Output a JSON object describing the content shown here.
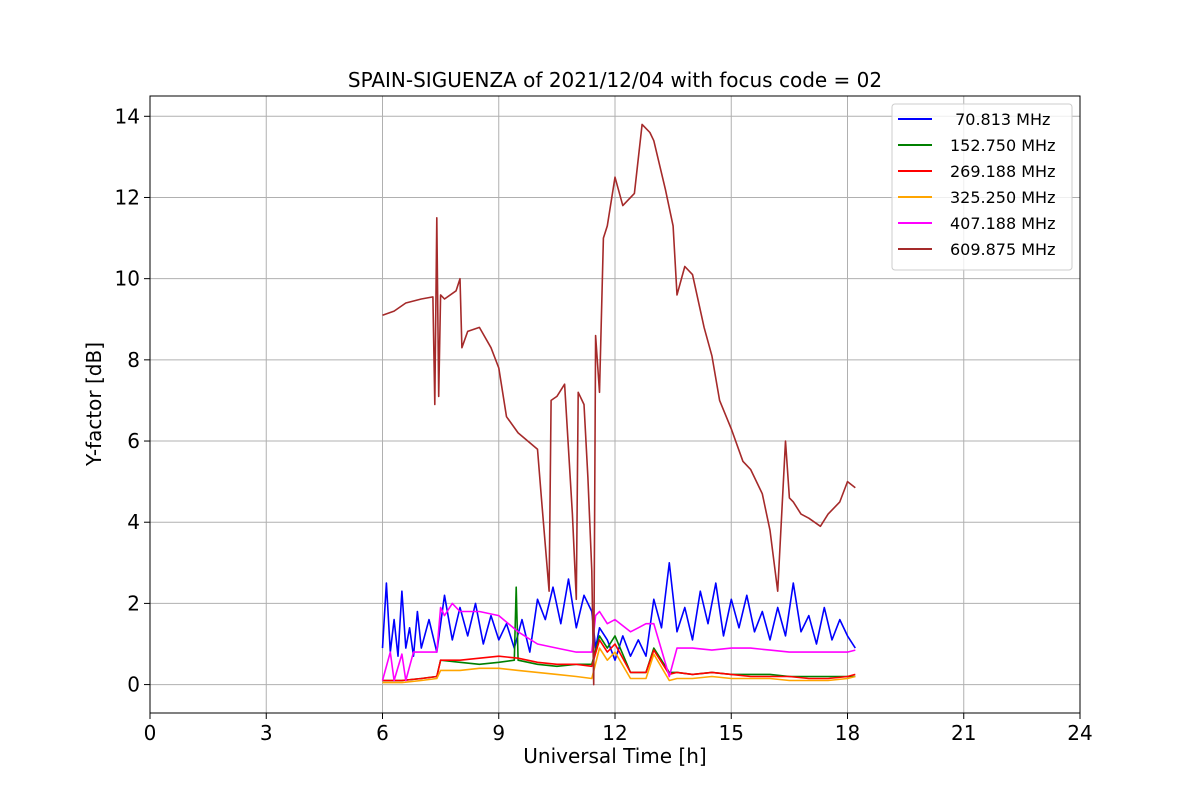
{
  "chart_data": {
    "type": "line",
    "title": "SPAIN-SIGUENZA of 2021/12/04 with focus code = 02",
    "xlabel": "Universal Time [h]",
    "ylabel": "Y-factor [dB]",
    "xlim": [
      0,
      24
    ],
    "ylim": [
      -0.7,
      14.5
    ],
    "xticks": [
      0,
      3,
      6,
      9,
      12,
      15,
      18,
      21,
      24
    ],
    "yticks": [
      0,
      2,
      4,
      6,
      8,
      10,
      12,
      14
    ],
    "grid": true,
    "legend_position": "top-right",
    "series": [
      {
        "name": " 70.813 MHz",
        "color": "#0000ff",
        "x": [
          6.0,
          6.1,
          6.2,
          6.3,
          6.4,
          6.5,
          6.6,
          6.7,
          6.8,
          6.9,
          7.0,
          7.2,
          7.4,
          7.6,
          7.8,
          8.0,
          8.2,
          8.4,
          8.6,
          8.8,
          9.0,
          9.2,
          9.4,
          9.6,
          9.8,
          10.0,
          10.2,
          10.4,
          10.6,
          10.8,
          11.0,
          11.2,
          11.4,
          11.5,
          11.6,
          11.8,
          12.0,
          12.2,
          12.4,
          12.6,
          12.8,
          13.0,
          13.2,
          13.4,
          13.6,
          13.8,
          14.0,
          14.2,
          14.4,
          14.6,
          14.8,
          15.0,
          15.2,
          15.4,
          15.6,
          15.8,
          16.0,
          16.2,
          16.4,
          16.6,
          16.8,
          17.0,
          17.2,
          17.4,
          17.6,
          17.8,
          18.0,
          18.2
        ],
        "y": [
          0.9,
          2.5,
          0.8,
          1.6,
          0.7,
          2.3,
          0.9,
          1.4,
          0.7,
          1.8,
          0.9,
          1.6,
          0.8,
          2.2,
          1.1,
          1.9,
          1.2,
          2.0,
          1.0,
          1.7,
          1.1,
          1.5,
          0.9,
          1.6,
          0.8,
          2.1,
          1.6,
          2.4,
          1.5,
          2.6,
          1.4,
          2.2,
          1.8,
          0.9,
          1.4,
          1.1,
          0.6,
          1.2,
          0.7,
          1.1,
          0.7,
          2.1,
          1.4,
          3.0,
          1.3,
          1.9,
          1.1,
          2.3,
          1.5,
          2.5,
          1.2,
          2.1,
          1.4,
          2.2,
          1.3,
          1.8,
          1.1,
          1.9,
          1.2,
          2.5,
          1.3,
          1.7,
          1.0,
          1.9,
          1.1,
          1.6,
          1.2,
          0.9
        ]
      },
      {
        "name": "152.750 MHz",
        "color": "#008000",
        "x": [
          6.0,
          6.5,
          7.0,
          7.4,
          7.5,
          8.0,
          8.5,
          9.0,
          9.4,
          9.45,
          9.5,
          10.0,
          10.5,
          11.0,
          11.4,
          11.6,
          11.8,
          12.0,
          12.4,
          12.8,
          13.0,
          13.4,
          13.6,
          14.0,
          14.5,
          15.0,
          15.5,
          16.0,
          16.5,
          17.0,
          17.5,
          18.0,
          18.2
        ],
        "y": [
          0.1,
          0.1,
          0.15,
          0.2,
          0.6,
          0.55,
          0.5,
          0.55,
          0.6,
          2.4,
          0.6,
          0.5,
          0.45,
          0.5,
          0.5,
          1.2,
          0.9,
          1.2,
          0.3,
          0.3,
          0.9,
          0.3,
          0.3,
          0.25,
          0.3,
          0.25,
          0.25,
          0.25,
          0.2,
          0.2,
          0.2,
          0.2,
          0.2
        ]
      },
      {
        "name": "269.188 MHz",
        "color": "#ff0000",
        "x": [
          6.0,
          6.5,
          7.0,
          7.4,
          7.5,
          8.0,
          8.5,
          9.0,
          9.5,
          10.0,
          10.5,
          11.0,
          11.4,
          11.6,
          11.8,
          12.0,
          12.4,
          12.8,
          13.0,
          13.4,
          13.6,
          14.0,
          14.5,
          15.0,
          15.5,
          16.0,
          16.5,
          17.0,
          17.5,
          18.0,
          18.2
        ],
        "y": [
          0.1,
          0.1,
          0.15,
          0.2,
          0.6,
          0.6,
          0.65,
          0.7,
          0.65,
          0.55,
          0.5,
          0.5,
          0.45,
          1.1,
          0.8,
          1.0,
          0.3,
          0.3,
          0.85,
          0.25,
          0.3,
          0.25,
          0.3,
          0.25,
          0.2,
          0.2,
          0.2,
          0.15,
          0.15,
          0.2,
          0.25
        ]
      },
      {
        "name": "325.250 MHz",
        "color": "#ffa500",
        "x": [
          6.0,
          6.5,
          7.0,
          7.4,
          7.5,
          8.0,
          8.5,
          9.0,
          9.5,
          10.0,
          10.5,
          11.0,
          11.4,
          11.6,
          11.8,
          12.0,
          12.4,
          12.8,
          13.0,
          13.4,
          13.6,
          14.0,
          14.5,
          15.0,
          15.5,
          16.0,
          16.5,
          17.0,
          17.5,
          18.0,
          18.2
        ],
        "y": [
          0.05,
          0.05,
          0.1,
          0.15,
          0.35,
          0.35,
          0.4,
          0.4,
          0.35,
          0.3,
          0.25,
          0.2,
          0.15,
          0.9,
          0.6,
          0.8,
          0.15,
          0.15,
          0.75,
          0.1,
          0.15,
          0.15,
          0.2,
          0.15,
          0.15,
          0.15,
          0.1,
          0.1,
          0.1,
          0.15,
          0.2
        ]
      },
      {
        "name": "407.188 MHz",
        "color": "#ff00ff",
        "x": [
          6.0,
          6.2,
          6.3,
          6.5,
          6.6,
          6.8,
          7.0,
          7.2,
          7.4,
          7.5,
          7.6,
          7.8,
          8.0,
          8.5,
          9.0,
          9.5,
          10.0,
          10.5,
          11.0,
          11.4,
          11.5,
          11.6,
          11.8,
          12.0,
          12.4,
          12.6,
          12.8,
          13.0,
          13.4,
          13.6,
          14.0,
          14.5,
          15.0,
          15.5,
          16.0,
          16.5,
          17.0,
          17.5,
          18.0,
          18.2
        ],
        "y": [
          0.1,
          0.8,
          0.1,
          0.75,
          0.1,
          0.8,
          0.8,
          0.8,
          0.8,
          1.9,
          1.7,
          2.0,
          1.8,
          1.8,
          1.7,
          1.3,
          1.0,
          0.9,
          0.8,
          0.8,
          1.7,
          1.8,
          1.5,
          1.6,
          1.3,
          1.4,
          1.5,
          1.5,
          0.2,
          0.9,
          0.9,
          0.85,
          0.9,
          0.9,
          0.85,
          0.8,
          0.8,
          0.8,
          0.8,
          0.85
        ]
      },
      {
        "name": "609.875 MHz",
        "color": "#a52a2a",
        "x": [
          6.0,
          6.3,
          6.6,
          7.0,
          7.3,
          7.35,
          7.4,
          7.45,
          7.5,
          7.6,
          7.9,
          8.0,
          8.05,
          8.2,
          8.5,
          8.8,
          9.0,
          9.2,
          9.5,
          10.0,
          10.1,
          10.3,
          10.35,
          10.5,
          10.7,
          10.9,
          11.0,
          11.05,
          11.2,
          11.3,
          11.4,
          11.45,
          11.5,
          11.6,
          11.7,
          11.8,
          12.0,
          12.2,
          12.5,
          12.7,
          12.9,
          13.0,
          13.3,
          13.5,
          13.6,
          13.8,
          14.0,
          14.3,
          14.5,
          14.7,
          15.0,
          15.3,
          15.5,
          15.8,
          16.0,
          16.2,
          16.4,
          16.5,
          16.6,
          16.8,
          17.0,
          17.3,
          17.5,
          17.8,
          18.0,
          18.2
        ],
        "y": [
          9.1,
          9.2,
          9.4,
          9.5,
          9.55,
          6.9,
          11.5,
          7.1,
          9.6,
          9.5,
          9.7,
          10.0,
          8.3,
          8.7,
          8.8,
          8.3,
          7.8,
          6.6,
          6.2,
          5.8,
          4.6,
          2.3,
          7.0,
          7.1,
          7.4,
          4.2,
          2.1,
          7.2,
          6.9,
          5.1,
          2.8,
          0.0,
          8.6,
          7.2,
          11.0,
          11.3,
          12.5,
          11.8,
          12.1,
          13.8,
          13.6,
          13.4,
          12.2,
          11.3,
          9.6,
          10.3,
          10.1,
          8.8,
          8.1,
          7.0,
          6.3,
          5.5,
          5.3,
          4.7,
          3.8,
          2.3,
          6.0,
          4.6,
          4.5,
          4.2,
          4.1,
          3.9,
          4.2,
          4.5,
          5.0,
          4.85
        ]
      }
    ]
  }
}
